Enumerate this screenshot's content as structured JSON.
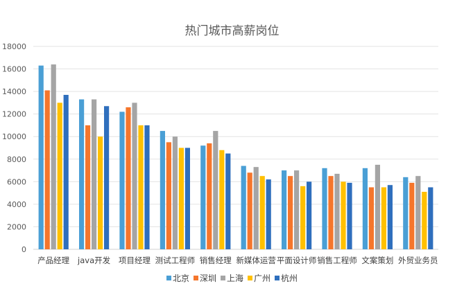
{
  "chart_data": {
    "type": "bar",
    "title": "热门城市高薪岗位",
    "categories": [
      "产品经理",
      "java开发",
      "项目经理",
      "测试工程师",
      "销售经理",
      "新媒体运营",
      "平面设计师",
      "销售工程师",
      "文案策划",
      "外贸业务员"
    ],
    "series": [
      {
        "name": "北京",
        "color": "#4a9fd5",
        "values": [
          16300,
          13300,
          12200,
          10500,
          9200,
          7400,
          7000,
          7200,
          7200,
          6400
        ]
      },
      {
        "name": "深圳",
        "color": "#f5762c",
        "values": [
          14100,
          11000,
          12600,
          9500,
          9400,
          6800,
          6500,
          6500,
          5500,
          5900
        ]
      },
      {
        "name": "上海",
        "color": "#a5a5a5",
        "values": [
          16400,
          13300,
          13000,
          10000,
          10500,
          7300,
          7000,
          6700,
          7500,
          6500
        ]
      },
      {
        "name": "广州",
        "color": "#ffc000",
        "values": [
          13000,
          10000,
          11000,
          9000,
          8800,
          6500,
          5600,
          6000,
          5500,
          5100
        ]
      },
      {
        "name": "杭州",
        "color": "#2f6fbd",
        "values": [
          13700,
          12700,
          11000,
          9000,
          8500,
          6200,
          6000,
          5900,
          5700,
          5500
        ]
      }
    ],
    "ylim": [
      0,
      18000
    ],
    "yticks": [
      0,
      2000,
      4000,
      6000,
      8000,
      10000,
      12000,
      14000,
      16000,
      18000
    ],
    "grid": true,
    "legend": "bottom"
  }
}
